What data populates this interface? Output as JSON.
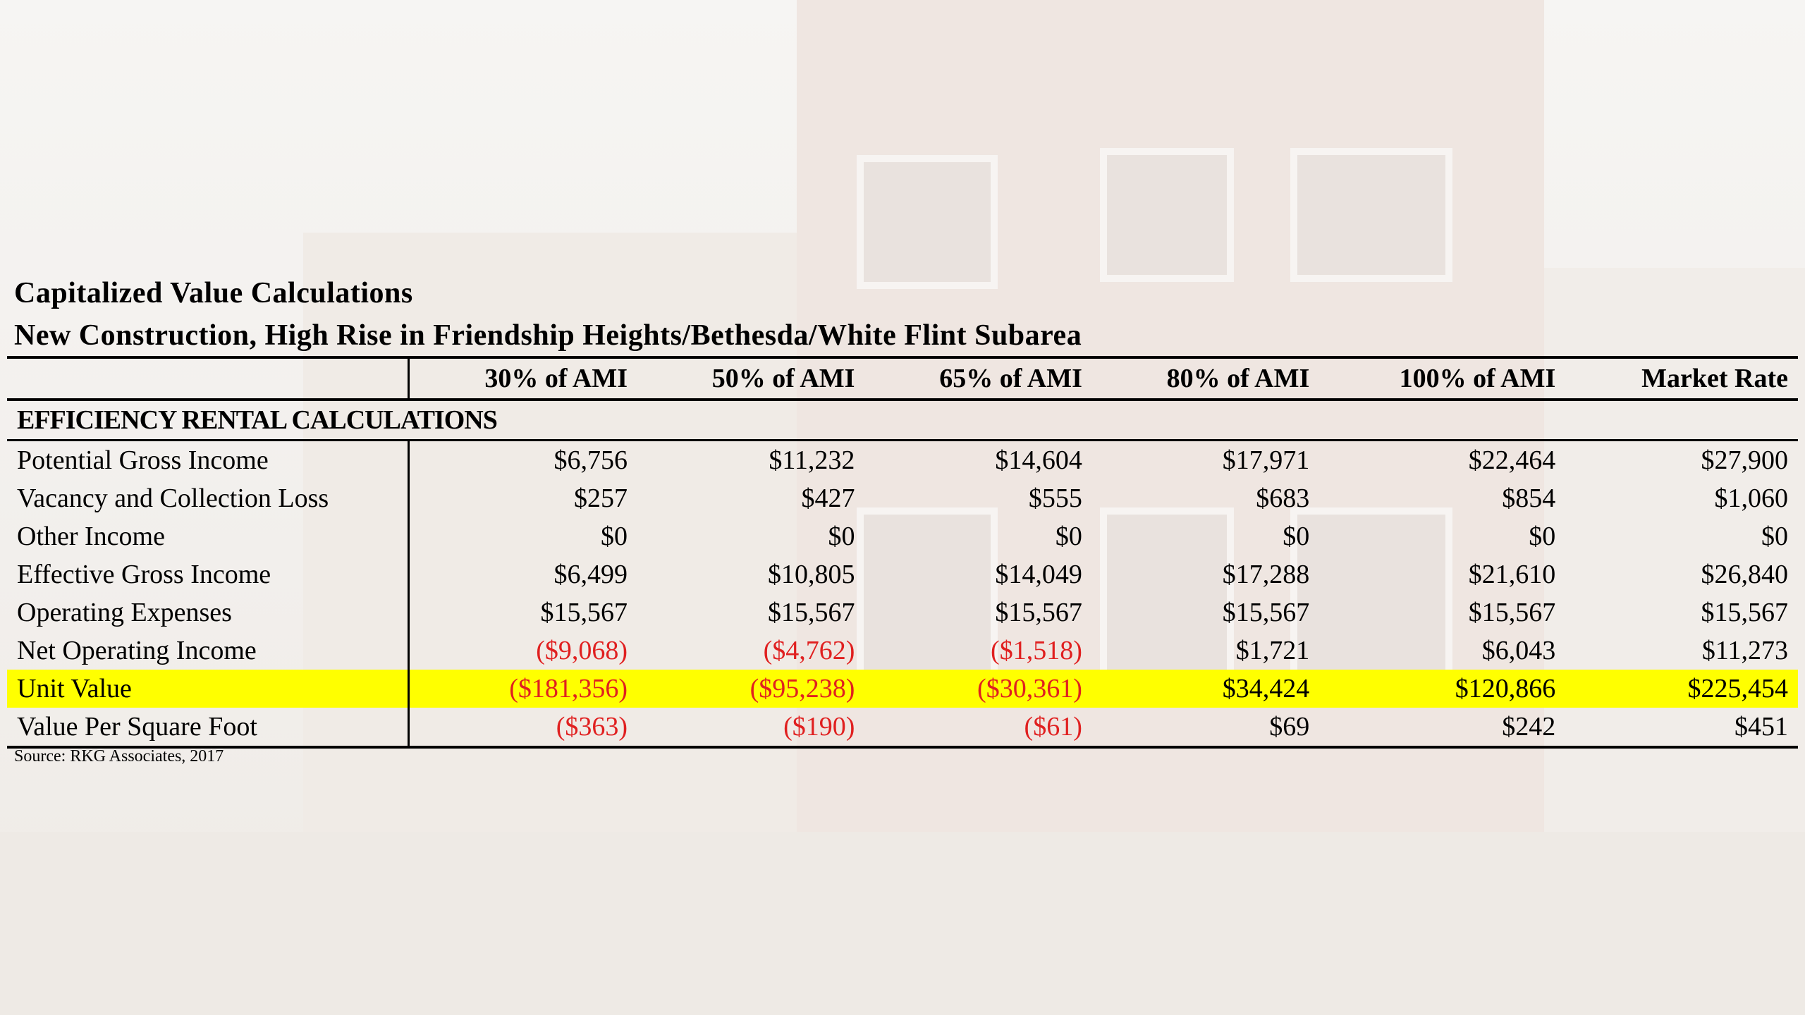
{
  "title": "Capitalized Value Calculations",
  "subtitle": "New Construction, High Rise in Friendship Heights/Bethesda/White Flint Subarea",
  "columns": [
    "30% of AMI",
    "50% of AMI",
    "65% of AMI",
    "80% of AMI",
    "100% of AMI",
    "Market Rate"
  ],
  "section_heading": "EFFICIENCY RENTAL CALCULATIONS",
  "rows": [
    {
      "label": "Potential Gross Income",
      "values": [
        "$6,756",
        "$11,232",
        "$14,604",
        "$17,971",
        "$22,464",
        "$27,900"
      ]
    },
    {
      "label": "Vacancy and Collection Loss",
      "values": [
        "$257",
        "$427",
        "$555",
        "$683",
        "$854",
        "$1,060"
      ]
    },
    {
      "label": "Other Income",
      "values": [
        "$0",
        "$0",
        "$0",
        "$0",
        "$0",
        "$0"
      ]
    },
    {
      "label": "Effective Gross Income",
      "values": [
        "$6,499",
        "$10,805",
        "$14,049",
        "$17,288",
        "$21,610",
        "$26,840"
      ]
    },
    {
      "label": "Operating Expenses",
      "values": [
        "$15,567",
        "$15,567",
        "$15,567",
        "$15,567",
        "$15,567",
        "$15,567"
      ]
    },
    {
      "label": "Net Operating Income",
      "values": [
        "($9,068)",
        "($4,762)",
        "($1,518)",
        "$1,721",
        "$6,043",
        "$11,273"
      ]
    },
    {
      "label": "Unit Value",
      "values": [
        "($181,356)",
        "($95,238)",
        "($30,361)",
        "$34,424",
        "$120,866",
        "$225,454"
      ]
    },
    {
      "label": "Value Per Square Foot",
      "values": [
        "($363)",
        "($190)",
        "($61)",
        "$69",
        "$242",
        "$451"
      ]
    }
  ],
  "source": "Source:  RKG Associates, 2017",
  "colors": {
    "highlight": "#ffff00",
    "negative": "#e02020"
  }
}
